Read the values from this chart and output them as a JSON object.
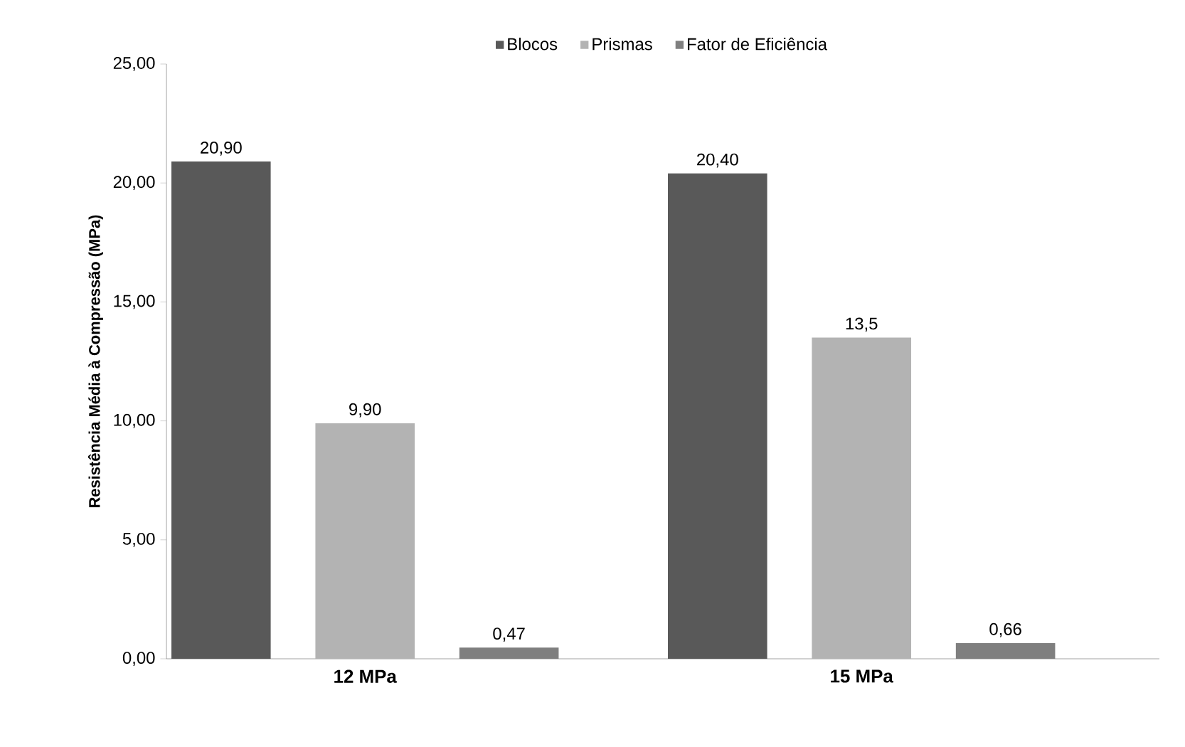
{
  "chart_data": {
    "type": "bar",
    "ylabel": "Resistência Média à Compressão (MPa)",
    "categories": [
      "12 MPa",
      "15 MPa"
    ],
    "series": [
      {
        "name": "Blocos",
        "color": "#595959",
        "values": [
          20.9,
          20.4
        ],
        "value_labels": [
          "20,90",
          "20,40"
        ]
      },
      {
        "name": "Prismas",
        "color": "#b3b3b3",
        "values": [
          9.9,
          13.5
        ],
        "value_labels": [
          "9,90",
          "13,5"
        ]
      },
      {
        "name": "Fator de Eficiência",
        "color": "#7f7f7f",
        "values": [
          0.47,
          0.66
        ],
        "value_labels": [
          "0,47",
          "0,66"
        ]
      }
    ],
    "ylim": [
      0,
      25
    ],
    "yticks": [
      {
        "value": 0,
        "label": "0,00"
      },
      {
        "value": 5,
        "label": "5,00"
      },
      {
        "value": 10,
        "label": "10,00"
      },
      {
        "value": 15,
        "label": "15,00"
      },
      {
        "value": 20,
        "label": "20,00"
      },
      {
        "value": 25,
        "label": "25,00"
      }
    ],
    "legend": "top",
    "grid": false
  }
}
